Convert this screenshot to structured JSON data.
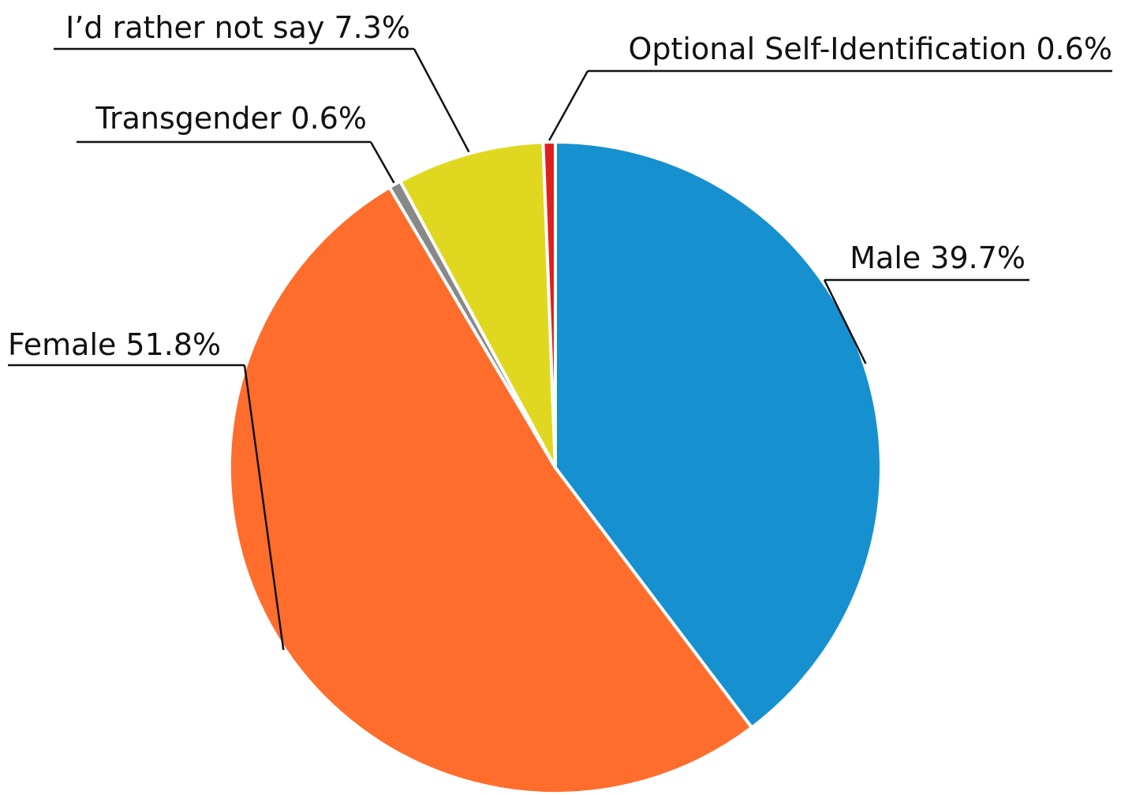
{
  "chart_data": {
    "type": "pie",
    "categories": [
      "Male",
      "Female",
      "Transgender",
      "I’d rather not say",
      "Optional Self-Identification"
    ],
    "values": [
      39.7,
      51.8,
      0.6,
      7.3,
      0.6
    ],
    "value_labels": [
      "39.7%",
      "51.8%",
      "0.6%",
      "7.3%",
      "0.6%"
    ],
    "colors": [
      "#1790d0",
      "#ff6d2d",
      "#888888",
      "#e0d820",
      "#e02020"
    ]
  }
}
